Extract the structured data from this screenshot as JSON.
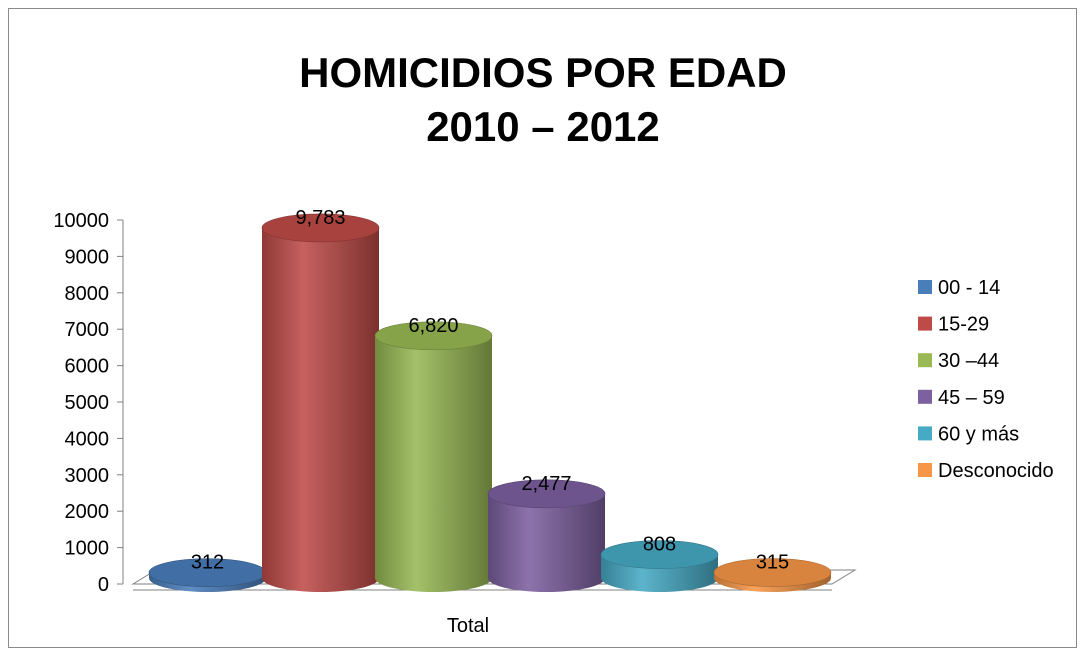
{
  "chart_data": {
    "type": "bar",
    "title_lines": [
      "HOMICIDIOS POR EDAD",
      "2010 – 2012"
    ],
    "categories": [
      "Total"
    ],
    "series": [
      {
        "name": "00 - 14",
        "values": [
          312
        ],
        "label": "312",
        "color": "#4a7ebb"
      },
      {
        "name": "15-29",
        "values": [
          9783
        ],
        "label": "9,783",
        "color": "#be4b48"
      },
      {
        "name": "30 –44",
        "values": [
          6820
        ],
        "label": "6,820",
        "color": "#98b954"
      },
      {
        "name": "45 – 59",
        "values": [
          2477
        ],
        "label": "2,477",
        "color": "#7d60a0"
      },
      {
        "name": "60 y más",
        "values": [
          808
        ],
        "label": "808",
        "color": "#46aac5"
      },
      {
        "name": "Desconocido",
        "values": [
          315
        ],
        "label": "315",
        "color": "#f79646"
      }
    ],
    "yticks": [
      "0",
      "1000",
      "2000",
      "3000",
      "4000",
      "5000",
      "6000",
      "7000",
      "8000",
      "9000",
      "10000"
    ],
    "ylim": [
      0,
      10000
    ],
    "xlabel": "",
    "ylabel": "",
    "bar_shape": "cylinder-3d",
    "legend_position": "right",
    "grid": false
  }
}
